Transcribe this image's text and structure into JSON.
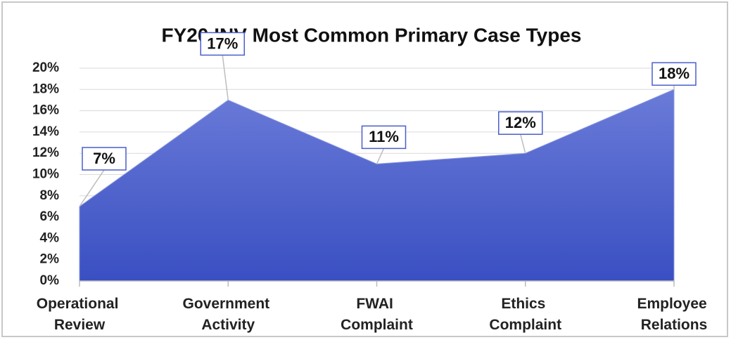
{
  "chart_data": {
    "type": "area",
    "title": "FY20 INV Most Common Primary Case Types",
    "categories": [
      "Operational Review",
      "Government Activity",
      "FWAI Complaint",
      "Ethics Complaint",
      "Employee Relations"
    ],
    "values": [
      7,
      17,
      11,
      12,
      18
    ],
    "value_labels": [
      "7%",
      "17%",
      "11%",
      "12%",
      "18%"
    ],
    "color": "#4a5ecb",
    "ylim": [
      0,
      20
    ],
    "yticks": [
      {
        "value": 0,
        "label": "0%"
      },
      {
        "value": 2,
        "label": "2%"
      },
      {
        "value": 4,
        "label": "4%"
      },
      {
        "value": 6,
        "label": "6%"
      },
      {
        "value": 8,
        "label": "8%"
      },
      {
        "value": 10,
        "label": "10%"
      },
      {
        "value": 12,
        "label": "12%"
      },
      {
        "value": 14,
        "label": "14%"
      },
      {
        "value": 16,
        "label": "16%"
      },
      {
        "value": 18,
        "label": "18%"
      },
      {
        "value": 20,
        "label": "20%"
      }
    ],
    "grid": true
  }
}
